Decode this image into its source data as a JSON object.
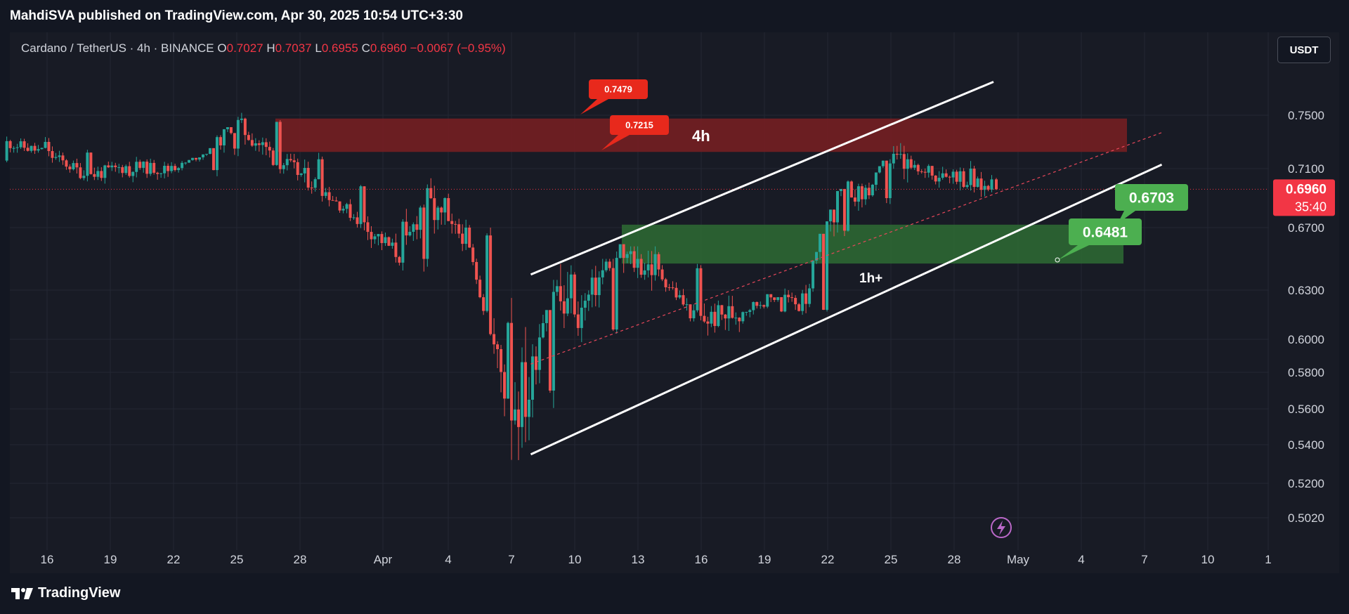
{
  "header": {
    "publisher_line": "MahdiSVA published on TradingView.com, Apr 30, 2025 10:54 UTC+3:30"
  },
  "symbol": {
    "name": "Cardano / TetherUS · 4h · BINANCE",
    "o_label": "O",
    "o_value": "0.7027",
    "h_label": "H",
    "h_value": "0.7037",
    "l_label": "L",
    "l_value": "0.6955",
    "c_label": "C",
    "c_value": "0.6960",
    "change": "−0.0067 (−0.95%)"
  },
  "currency_button": "USDT",
  "footer": {
    "brand": "TradingView"
  },
  "colors": {
    "up": "#26a69a",
    "down": "#ef5350",
    "background": "#181b25",
    "resistance_zone": "#7a1e22",
    "support_zone": "#2e6b34",
    "label_red": "#e8291c",
    "label_green": "#4caf50",
    "price_badge": "#f23645"
  },
  "chart_data": {
    "type": "candlestick",
    "ytick_labels": [
      "0.7500",
      "0.7100",
      "0.6700",
      "0.6300",
      "0.6000",
      "0.5800",
      "0.5600",
      "0.5400",
      "0.5200",
      "0.5020"
    ],
    "xtick_labels": [
      "16",
      "19",
      "22",
      "25",
      "28",
      "Apr",
      "4",
      "7",
      "10",
      "13",
      "16",
      "19",
      "22",
      "25",
      "28",
      "May",
      "4",
      "7",
      "10",
      "1"
    ],
    "last_price": "0.6960",
    "countdown": "35:40",
    "annotations": {
      "label_1": "0.7479",
      "label_2": "0.7215",
      "resistance_tf": "4h",
      "support_tf": "1h+",
      "target_1": "0.6703",
      "target_2": "0.6481"
    },
    "resistance_zone": [
      0.7225,
      0.7475
    ],
    "support_zone": [
      0.647,
      0.672
    ],
    "channel": {
      "upper": [
        [
          "Apr 8",
          0.64
        ],
        [
          "Apr 30",
          0.775
        ]
      ],
      "lower": [
        [
          "Apr 8",
          0.535
        ],
        [
          "May 8",
          0.713
        ]
      ],
      "midline": [
        [
          "Apr 8",
          0.585
        ],
        [
          "May 8",
          0.737
        ]
      ]
    },
    "candles_ohlc_approx": [
      [
        "Mar 14",
        0.716,
        0.734,
        0.71,
        0.73
      ],
      [
        "Mar 16",
        0.73,
        0.742,
        0.716,
        0.722
      ],
      [
        "Mar 18",
        0.722,
        0.726,
        0.7,
        0.705
      ],
      [
        "Mar 20",
        0.705,
        0.72,
        0.695,
        0.712
      ],
      [
        "Mar 22",
        0.712,
        0.716,
        0.706,
        0.709
      ],
      [
        "Mar 24",
        0.709,
        0.735,
        0.703,
        0.725
      ],
      [
        "Mar 25",
        0.725,
        0.765,
        0.721,
        0.745
      ],
      [
        "Mar 27",
        0.745,
        0.748,
        0.712,
        0.717
      ],
      [
        "Mar 29",
        0.717,
        0.719,
        0.693,
        0.698
      ],
      [
        "Mar 31",
        0.698,
        0.702,
        0.668,
        0.674
      ],
      [
        "Apr 2",
        0.674,
        0.695,
        0.64,
        0.65
      ],
      [
        "Apr 3",
        0.65,
        0.708,
        0.645,
        0.69
      ],
      [
        "Apr 4",
        0.69,
        0.693,
        0.655,
        0.67
      ],
      [
        "Apr 5",
        0.67,
        0.676,
        0.66,
        0.665
      ],
      [
        "Apr 6",
        0.665,
        0.67,
        0.6,
        0.61
      ],
      [
        "Apr 7",
        0.61,
        0.64,
        0.515,
        0.565
      ],
      [
        "Apr 8",
        0.565,
        0.615,
        0.545,
        0.57
      ],
      [
        "Apr 9",
        0.57,
        0.65,
        0.548,
        0.64
      ],
      [
        "Apr 10",
        0.64,
        0.65,
        0.598,
        0.606
      ],
      [
        "Apr 12",
        0.606,
        0.658,
        0.6,
        0.653
      ],
      [
        "Apr 14",
        0.653,
        0.662,
        0.636,
        0.644
      ],
      [
        "Apr 16",
        0.644,
        0.646,
        0.602,
        0.611
      ],
      [
        "Apr 18",
        0.611,
        0.625,
        0.605,
        0.617
      ],
      [
        "Apr 20",
        0.617,
        0.636,
        0.614,
        0.628
      ],
      [
        "Apr 21",
        0.628,
        0.648,
        0.611,
        0.618
      ],
      [
        "Apr 22",
        0.618,
        0.672,
        0.617,
        0.668
      ],
      [
        "Apr 23",
        0.668,
        0.702,
        0.666,
        0.697
      ],
      [
        "Apr 24",
        0.697,
        0.707,
        0.682,
        0.69
      ],
      [
        "Apr 25",
        0.69,
        0.748,
        0.686,
        0.717
      ],
      [
        "Apr 26",
        0.717,
        0.73,
        0.708,
        0.712
      ],
      [
        "Apr 27",
        0.712,
        0.725,
        0.696,
        0.704
      ],
      [
        "Apr 28",
        0.704,
        0.727,
        0.692,
        0.71
      ],
      [
        "Apr 29",
        0.71,
        0.718,
        0.69,
        0.7
      ],
      [
        "Apr 30",
        0.7027,
        0.7037,
        0.6955,
        0.696
      ]
    ]
  }
}
